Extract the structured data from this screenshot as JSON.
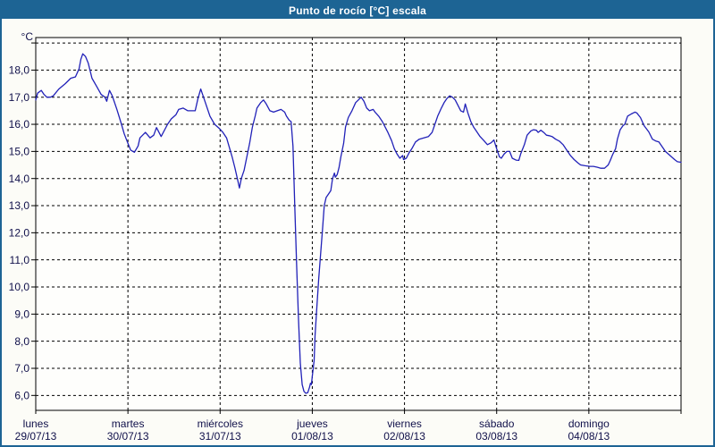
{
  "window": {
    "title": "Punto de rocío [°C] escala"
  },
  "colors": {
    "titlebar_bg": "#1d6494",
    "window_border": "#1d6494",
    "content_bg": "#fcfcf7",
    "plot_bg": "#fefefc",
    "frame": "#000000",
    "grid": "#000000",
    "axis_text": "#10104a",
    "line": "#2121b8"
  },
  "chart_data": {
    "type": "line",
    "title": "Punto de rocío [°C] escala",
    "grid": {
      "style": "dashed",
      "horizontal": true,
      "vertical": true
    },
    "legend": "none",
    "y_axis": {
      "unit_label": "°C",
      "ylim": [
        5.45,
        19.2
      ],
      "gridline_values": [
        19,
        18,
        17,
        16,
        15,
        14,
        13,
        12,
        11,
        10,
        9,
        8,
        7,
        6
      ],
      "tick_values": [
        18,
        17,
        16,
        15,
        14,
        13,
        12,
        11,
        10,
        9,
        8,
        7,
        6
      ],
      "tick_labels": [
        "18,0",
        "17,0",
        "16,0",
        "15,0",
        "14,0",
        "13,0",
        "12,0",
        "11,0",
        "10,0",
        "9,0",
        "8,0",
        "7,0",
        "6,0"
      ]
    },
    "x_axis": {
      "xlim_days": [
        0,
        7
      ],
      "boundary_ticks": [
        0,
        1,
        2,
        3,
        4,
        5,
        6,
        7
      ],
      "ticks": [
        {
          "day": "lunes",
          "date": "29/07/13",
          "offset": 0
        },
        {
          "day": "martes",
          "date": "30/07/13",
          "offset": 1
        },
        {
          "day": "miércoles",
          "date": "31/07/13",
          "offset": 2
        },
        {
          "day": "jueves",
          "date": "01/08/13",
          "offset": 3
        },
        {
          "day": "viernes",
          "date": "02/08/13",
          "offset": 4
        },
        {
          "day": "sábado",
          "date": "03/08/13",
          "offset": 5
        },
        {
          "day": "domingo",
          "date": "04/08/13",
          "offset": 6
        }
      ]
    },
    "series": [
      {
        "name": "Punto de rocío",
        "color": "#2121b8",
        "points": [
          [
            0,
            16.9
          ],
          [
            0.02,
            17.15
          ],
          [
            0.04,
            17.2
          ],
          [
            0.06,
            17.25
          ],
          [
            0.09,
            17.1
          ],
          [
            0.12,
            17.0
          ],
          [
            0.16,
            17.0
          ],
          [
            0.19,
            17.05
          ],
          [
            0.25,
            17.3
          ],
          [
            0.32,
            17.5
          ],
          [
            0.38,
            17.7
          ],
          [
            0.43,
            17.75
          ],
          [
            0.47,
            18.05
          ],
          [
            0.49,
            18.4
          ],
          [
            0.51,
            18.6
          ],
          [
            0.54,
            18.5
          ],
          [
            0.57,
            18.25
          ],
          [
            0.61,
            17.7
          ],
          [
            0.66,
            17.4
          ],
          [
            0.71,
            17.1
          ],
          [
            0.75,
            17.0
          ],
          [
            0.77,
            16.85
          ],
          [
            0.8,
            17.25
          ],
          [
            0.83,
            17.05
          ],
          [
            0.88,
            16.55
          ],
          [
            0.93,
            16.0
          ],
          [
            0.96,
            15.65
          ],
          [
            1.0,
            15.3
          ],
          [
            1.03,
            15.05
          ],
          [
            1.07,
            14.97
          ],
          [
            1.11,
            15.2
          ],
          [
            1.13,
            15.5
          ],
          [
            1.19,
            15.7
          ],
          [
            1.24,
            15.5
          ],
          [
            1.28,
            15.6
          ],
          [
            1.31,
            15.88
          ],
          [
            1.36,
            15.55
          ],
          [
            1.43,
            16.0
          ],
          [
            1.47,
            16.2
          ],
          [
            1.52,
            16.35
          ],
          [
            1.55,
            16.55
          ],
          [
            1.6,
            16.6
          ],
          [
            1.65,
            16.5
          ],
          [
            1.73,
            16.5
          ],
          [
            1.76,
            16.95
          ],
          [
            1.79,
            17.3
          ],
          [
            1.84,
            16.8
          ],
          [
            1.89,
            16.3
          ],
          [
            1.94,
            16.0
          ],
          [
            1.99,
            15.85
          ],
          [
            2.03,
            15.7
          ],
          [
            2.07,
            15.5
          ],
          [
            2.1,
            15.15
          ],
          [
            2.13,
            14.8
          ],
          [
            2.16,
            14.4
          ],
          [
            2.19,
            13.95
          ],
          [
            2.21,
            13.65
          ],
          [
            2.23,
            14.0
          ],
          [
            2.26,
            14.3
          ],
          [
            2.29,
            14.8
          ],
          [
            2.32,
            15.3
          ],
          [
            2.35,
            15.9
          ],
          [
            2.38,
            16.3
          ],
          [
            2.4,
            16.6
          ],
          [
            2.44,
            16.8
          ],
          [
            2.47,
            16.9
          ],
          [
            2.5,
            16.75
          ],
          [
            2.54,
            16.5
          ],
          [
            2.58,
            16.45
          ],
          [
            2.62,
            16.5
          ],
          [
            2.66,
            16.55
          ],
          [
            2.7,
            16.45
          ],
          [
            2.72,
            16.3
          ],
          [
            2.75,
            16.15
          ],
          [
            2.77,
            16.1
          ],
          [
            2.79,
            15.2
          ],
          [
            2.81,
            13.0
          ],
          [
            2.83,
            10.8
          ],
          [
            2.85,
            8.8
          ],
          [
            2.87,
            7.2
          ],
          [
            2.89,
            6.4
          ],
          [
            2.91,
            6.15
          ],
          [
            2.93,
            6.08
          ],
          [
            2.95,
            6.1
          ],
          [
            2.97,
            6.3
          ],
          [
            2.98,
            6.45
          ],
          [
            2.99,
            6.4
          ],
          [
            3.0,
            6.7
          ],
          [
            3.02,
            7.3
          ],
          [
            3.03,
            8.2
          ],
          [
            3.05,
            9.3
          ],
          [
            3.07,
            10.3
          ],
          [
            3.09,
            11.2
          ],
          [
            3.11,
            12.1
          ],
          [
            3.13,
            13.0
          ],
          [
            3.15,
            13.3
          ],
          [
            3.18,
            13.45
          ],
          [
            3.2,
            13.55
          ],
          [
            3.22,
            14.0
          ],
          [
            3.24,
            14.2
          ],
          [
            3.25,
            14.05
          ],
          [
            3.27,
            14.15
          ],
          [
            3.29,
            14.4
          ],
          [
            3.31,
            14.8
          ],
          [
            3.34,
            15.3
          ],
          [
            3.36,
            15.9
          ],
          [
            3.39,
            16.25
          ],
          [
            3.43,
            16.5
          ],
          [
            3.47,
            16.8
          ],
          [
            3.5,
            16.9
          ],
          [
            3.53,
            17.0
          ],
          [
            3.56,
            16.85
          ],
          [
            3.59,
            16.6
          ],
          [
            3.62,
            16.5
          ],
          [
            3.66,
            16.55
          ],
          [
            3.68,
            16.45
          ],
          [
            3.72,
            16.3
          ],
          [
            3.76,
            16.1
          ],
          [
            3.79,
            15.9
          ],
          [
            3.82,
            15.7
          ],
          [
            3.86,
            15.4
          ],
          [
            3.89,
            15.1
          ],
          [
            3.92,
            14.9
          ],
          [
            3.95,
            14.75
          ],
          [
            3.98,
            14.85
          ],
          [
            3.99,
            14.7
          ],
          [
            4.02,
            14.75
          ],
          [
            4.05,
            14.95
          ],
          [
            4.08,
            15.1
          ],
          [
            4.12,
            15.35
          ],
          [
            4.16,
            15.45
          ],
          [
            4.21,
            15.5
          ],
          [
            4.26,
            15.55
          ],
          [
            4.3,
            15.7
          ],
          [
            4.33,
            16.0
          ],
          [
            4.36,
            16.3
          ],
          [
            4.4,
            16.6
          ],
          [
            4.43,
            16.8
          ],
          [
            4.46,
            16.95
          ],
          [
            4.49,
            17.05
          ],
          [
            4.52,
            17.0
          ],
          [
            4.55,
            16.9
          ],
          [
            4.58,
            16.7
          ],
          [
            4.61,
            16.5
          ],
          [
            4.64,
            16.45
          ],
          [
            4.66,
            16.75
          ],
          [
            4.69,
            16.4
          ],
          [
            4.72,
            16.1
          ],
          [
            4.75,
            15.9
          ],
          [
            4.78,
            15.75
          ],
          [
            4.82,
            15.55
          ],
          [
            4.86,
            15.4
          ],
          [
            4.9,
            15.25
          ],
          [
            4.94,
            15.32
          ],
          [
            4.97,
            15.42
          ],
          [
            5.0,
            15.1
          ],
          [
            5.03,
            14.8
          ],
          [
            5.05,
            14.75
          ],
          [
            5.08,
            14.9
          ],
          [
            5.11,
            15.0
          ],
          [
            5.14,
            15.0
          ],
          [
            5.17,
            14.75
          ],
          [
            5.21,
            14.68
          ],
          [
            5.24,
            14.67
          ],
          [
            5.26,
            14.9
          ],
          [
            5.3,
            15.25
          ],
          [
            5.33,
            15.6
          ],
          [
            5.37,
            15.75
          ],
          [
            5.4,
            15.8
          ],
          [
            5.43,
            15.78
          ],
          [
            5.45,
            15.7
          ],
          [
            5.48,
            15.78
          ],
          [
            5.51,
            15.7
          ],
          [
            5.54,
            15.6
          ],
          [
            5.57,
            15.58
          ],
          [
            5.6,
            15.55
          ],
          [
            5.64,
            15.45
          ],
          [
            5.68,
            15.38
          ],
          [
            5.72,
            15.25
          ],
          [
            5.76,
            15.05
          ],
          [
            5.8,
            14.85
          ],
          [
            5.84,
            14.7
          ],
          [
            5.88,
            14.58
          ],
          [
            5.91,
            14.5
          ],
          [
            5.96,
            14.47
          ],
          [
            6.01,
            14.45
          ],
          [
            6.05,
            14.45
          ],
          [
            6.09,
            14.42
          ],
          [
            6.13,
            14.38
          ],
          [
            6.17,
            14.38
          ],
          [
            6.21,
            14.5
          ],
          [
            6.23,
            14.65
          ],
          [
            6.26,
            14.9
          ],
          [
            6.29,
            15.1
          ],
          [
            6.31,
            15.45
          ],
          [
            6.34,
            15.8
          ],
          [
            6.37,
            15.95
          ],
          [
            6.39,
            16.0
          ],
          [
            6.42,
            16.3
          ],
          [
            6.46,
            16.38
          ],
          [
            6.5,
            16.45
          ],
          [
            6.52,
            16.42
          ],
          [
            6.56,
            16.25
          ],
          [
            6.6,
            15.95
          ],
          [
            6.65,
            15.72
          ],
          [
            6.69,
            15.45
          ],
          [
            6.73,
            15.38
          ],
          [
            6.76,
            15.35
          ],
          [
            6.79,
            15.2
          ],
          [
            6.83,
            15.0
          ],
          [
            6.88,
            14.85
          ],
          [
            6.93,
            14.7
          ],
          [
            6.96,
            14.62
          ],
          [
            7.0,
            14.6
          ]
        ]
      }
    ]
  }
}
